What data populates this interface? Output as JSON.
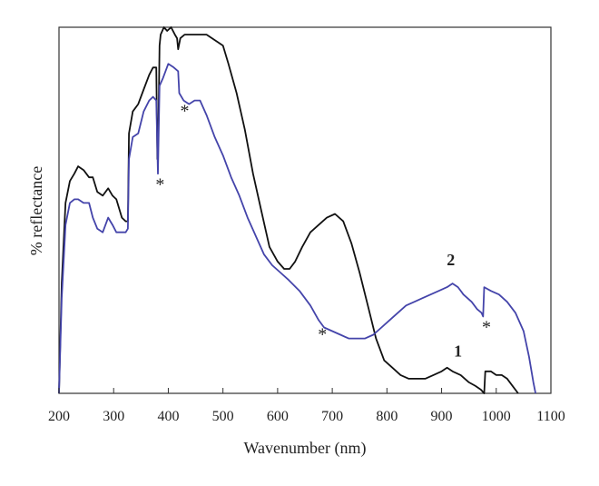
{
  "chart_data": {
    "type": "line",
    "title": "",
    "xlabel": "Wavenumber (nm)",
    "ylabel": "% reflectance",
    "xlim": [
      200,
      1100
    ],
    "ylim": [
      0,
      100
    ],
    "xticks": [
      200,
      300,
      400,
      500,
      600,
      700,
      800,
      900,
      1000,
      1100
    ],
    "grid": false,
    "legend": "none",
    "series": [
      {
        "label": "1",
        "color": "#111111",
        "points": [
          [
            200,
            0
          ],
          [
            205,
            30
          ],
          [
            212,
            52
          ],
          [
            220,
            58
          ],
          [
            228,
            60
          ],
          [
            235,
            62
          ],
          [
            245,
            61
          ],
          [
            255,
            59
          ],
          [
            262,
            59
          ],
          [
            270,
            55
          ],
          [
            280,
            54
          ],
          [
            290,
            56
          ],
          [
            298,
            54
          ],
          [
            305,
            53
          ],
          [
            315,
            48
          ],
          [
            322,
            47
          ],
          [
            326,
            47
          ],
          [
            328,
            71
          ],
          [
            335,
            77
          ],
          [
            345,
            79
          ],
          [
            355,
            83
          ],
          [
            365,
            87
          ],
          [
            372,
            89
          ],
          [
            378,
            89
          ],
          [
            380,
            64
          ],
          [
            382,
            73
          ],
          [
            384,
            95
          ],
          [
            386,
            98
          ],
          [
            392,
            100
          ],
          [
            398,
            99
          ],
          [
            405,
            100
          ],
          [
            412,
            98
          ],
          [
            416,
            97
          ],
          [
            418,
            94
          ],
          [
            422,
            97
          ],
          [
            430,
            98
          ],
          [
            440,
            98
          ],
          [
            455,
            98
          ],
          [
            470,
            98
          ],
          [
            480,
            97
          ],
          [
            490,
            96
          ],
          [
            500,
            95
          ],
          [
            510,
            90
          ],
          [
            525,
            82
          ],
          [
            540,
            72
          ],
          [
            555,
            60
          ],
          [
            570,
            50
          ],
          [
            585,
            40
          ],
          [
            600,
            36
          ],
          [
            612,
            34
          ],
          [
            622,
            34
          ],
          [
            632,
            36
          ],
          [
            645,
            40
          ],
          [
            660,
            44
          ],
          [
            675,
            46
          ],
          [
            690,
            48
          ],
          [
            705,
            49
          ],
          [
            720,
            47
          ],
          [
            735,
            41
          ],
          [
            750,
            33
          ],
          [
            765,
            24
          ],
          [
            780,
            15
          ],
          [
            795,
            9
          ],
          [
            810,
            7
          ],
          [
            825,
            5
          ],
          [
            840,
            4
          ],
          [
            855,
            4
          ],
          [
            870,
            4
          ],
          [
            885,
            5
          ],
          [
            900,
            6
          ],
          [
            910,
            7
          ],
          [
            920,
            6
          ],
          [
            935,
            5
          ],
          [
            950,
            3
          ],
          [
            962,
            2
          ],
          [
            972,
            1
          ],
          [
            978,
            0
          ],
          [
            980,
            6
          ],
          [
            990,
            6
          ],
          [
            1000,
            5
          ],
          [
            1010,
            5
          ],
          [
            1020,
            4
          ],
          [
            1030,
            2
          ],
          [
            1040,
            0
          ]
        ]
      },
      {
        "label": "2",
        "color": "#4444aa",
        "points": [
          [
            200,
            0
          ],
          [
            205,
            26
          ],
          [
            212,
            46
          ],
          [
            220,
            52
          ],
          [
            228,
            53
          ],
          [
            235,
            53
          ],
          [
            245,
            52
          ],
          [
            255,
            52
          ],
          [
            262,
            48
          ],
          [
            270,
            45
          ],
          [
            280,
            44
          ],
          [
            290,
            48
          ],
          [
            298,
            46
          ],
          [
            305,
            44
          ],
          [
            315,
            44
          ],
          [
            322,
            44
          ],
          [
            326,
            45
          ],
          [
            328,
            64
          ],
          [
            335,
            70
          ],
          [
            345,
            71
          ],
          [
            355,
            77
          ],
          [
            365,
            80
          ],
          [
            372,
            81
          ],
          [
            378,
            80
          ],
          [
            381,
            60
          ],
          [
            384,
            84
          ],
          [
            390,
            86
          ],
          [
            400,
            90
          ],
          [
            410,
            89
          ],
          [
            418,
            88
          ],
          [
            420,
            82
          ],
          [
            428,
            80
          ],
          [
            438,
            79
          ],
          [
            448,
            80
          ],
          [
            458,
            80
          ],
          [
            470,
            76
          ],
          [
            485,
            70
          ],
          [
            500,
            65
          ],
          [
            515,
            59
          ],
          [
            530,
            54
          ],
          [
            545,
            48
          ],
          [
            560,
            43
          ],
          [
            575,
            38
          ],
          [
            590,
            35
          ],
          [
            605,
            33
          ],
          [
            620,
            31
          ],
          [
            640,
            28
          ],
          [
            660,
            24
          ],
          [
            675,
            20
          ],
          [
            685,
            18
          ],
          [
            700,
            17
          ],
          [
            715,
            16
          ],
          [
            730,
            15
          ],
          [
            745,
            15
          ],
          [
            760,
            15
          ],
          [
            775,
            16
          ],
          [
            790,
            18
          ],
          [
            805,
            20
          ],
          [
            820,
            22
          ],
          [
            835,
            24
          ],
          [
            850,
            25
          ],
          [
            865,
            26
          ],
          [
            880,
            27
          ],
          [
            895,
            28
          ],
          [
            910,
            29
          ],
          [
            920,
            30
          ],
          [
            930,
            29
          ],
          [
            940,
            27
          ],
          [
            955,
            25
          ],
          [
            965,
            23
          ],
          [
            973,
            22
          ],
          [
            976,
            21
          ],
          [
            978,
            29
          ],
          [
            990,
            28
          ],
          [
            1005,
            27
          ],
          [
            1020,
            25
          ],
          [
            1035,
            22
          ],
          [
            1050,
            17
          ],
          [
            1060,
            10
          ],
          [
            1068,
            3
          ],
          [
            1072,
            0
          ]
        ]
      }
    ],
    "curve_labels": [
      {
        "text": "1",
        "x": 930,
        "y": 10
      },
      {
        "text": "2",
        "x": 917,
        "y": 35
      }
    ],
    "annotations": [
      {
        "text": "*",
        "x": 385,
        "y": 58
      },
      {
        "text": "*",
        "x": 430,
        "y": 78
      },
      {
        "text": "*",
        "x": 682,
        "y": 17
      },
      {
        "text": "*",
        "x": 982,
        "y": 19
      }
    ]
  }
}
